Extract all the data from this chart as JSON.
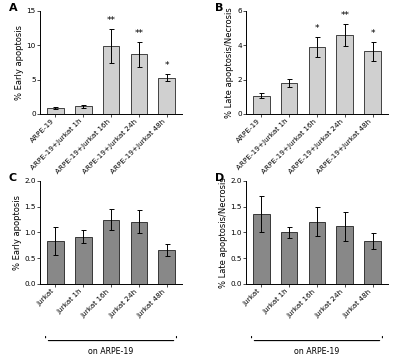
{
  "panel_A": {
    "categories": [
      "ARPE-19",
      "ARPE-19+Jurkat 1h",
      "ARPE-19+Jurkat 16h",
      "ARPE-19+Jurkat 24h",
      "ARPE-19+Jurkat 48h"
    ],
    "values": [
      0.85,
      1.1,
      9.9,
      8.7,
      5.3
    ],
    "errors": [
      0.15,
      0.2,
      2.5,
      1.8,
      0.5
    ],
    "ylabel": "% Early apoptosis",
    "ylim": [
      0,
      15
    ],
    "yticks": [
      0,
      5,
      10,
      15
    ],
    "significance": [
      "",
      "",
      "**",
      "**",
      "*"
    ],
    "panel_label": "A",
    "bar_color": "#d0d0d0"
  },
  "panel_B": {
    "categories": [
      "ARPE-19",
      "ARPE-19+Jurkat 1h",
      "ARPE-19+Jurkat 16h",
      "ARPE-19+Jurkat 24h",
      "ARPE-19+Jurkat 48h"
    ],
    "values": [
      1.05,
      1.8,
      3.9,
      4.6,
      3.65
    ],
    "errors": [
      0.15,
      0.25,
      0.6,
      0.65,
      0.55
    ],
    "ylabel": "% Late apoptosis/Necrosis",
    "ylim": [
      0,
      6
    ],
    "yticks": [
      0,
      2,
      4,
      6
    ],
    "significance": [
      "",
      "",
      "*",
      "**",
      "*"
    ],
    "panel_label": "B",
    "bar_color": "#d0d0d0"
  },
  "panel_C": {
    "categories": [
      "Jurkat",
      "Jurkat 1h",
      "Jurkat 16h",
      "Jurkat 24h",
      "Jurkat 48h"
    ],
    "values": [
      0.83,
      0.92,
      1.25,
      1.21,
      0.66
    ],
    "errors": [
      0.27,
      0.12,
      0.2,
      0.22,
      0.12
    ],
    "ylabel": "% Early apoptosis",
    "ylim": [
      0,
      2.0
    ],
    "yticks": [
      0.0,
      0.5,
      1.0,
      1.5,
      2.0
    ],
    "significance": [
      "",
      "",
      "",
      "",
      ""
    ],
    "panel_label": "C",
    "bar_color": "#888888",
    "xlabel": "on ARPE-19"
  },
  "panel_D": {
    "categories": [
      "Jurkat",
      "Jurkat 1h",
      "Jurkat 16h",
      "Jurkat 24h",
      "Jurkat 48h"
    ],
    "values": [
      1.35,
      1.0,
      1.21,
      1.12,
      0.83
    ],
    "errors": [
      0.35,
      0.1,
      0.28,
      0.28,
      0.15
    ],
    "ylabel": "% Late apoptosis/Necrosis",
    "ylim": [
      0,
      2.0
    ],
    "yticks": [
      0.0,
      0.5,
      1.0,
      1.5,
      2.0
    ],
    "significance": [
      "",
      "",
      "",
      "",
      ""
    ],
    "panel_label": "D",
    "bar_color": "#888888",
    "xlabel": "on ARPE-19"
  },
  "tick_label_fontsize": 5.2,
  "axis_label_fontsize": 6.0,
  "panel_label_fontsize": 8,
  "sig_fontsize": 6.5,
  "bar_width": 0.6,
  "background_color": "#ffffff"
}
